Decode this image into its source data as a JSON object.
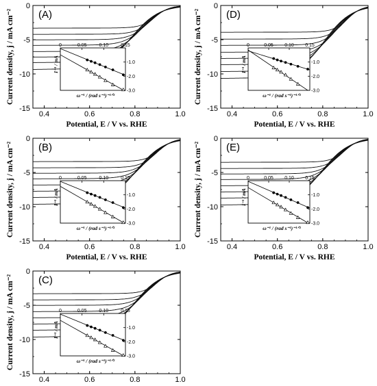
{
  "chart_data": [
    {
      "panel": "(A)",
      "type": "line",
      "xlabel": "Potential, E / V vs. RHE",
      "ylabel": "Current density, j / mA cm⁻²",
      "xlim": [
        0.35,
        1.0
      ],
      "ylim": [
        -15,
        0
      ],
      "xticks": [
        "0.4",
        "0.6",
        "0.8",
        "1.0"
      ],
      "yticks": [
        "0",
        "-5",
        "-10",
        "-15"
      ],
      "limiting_currents": [
        -3.3,
        -4.2,
        -5.0,
        -5.8,
        -6.7,
        -7.5,
        -8.3,
        -9.3
      ],
      "half_wave_potential": 0.89,
      "inset": {
        "ylabel": "I⁻¹ / mA",
        "xlabel": "ω⁻¹ / (rad s⁻¹)⁻¹ᐟ²",
        "xticks": [
          "0",
          "0.05",
          "0.10",
          "0.15"
        ],
        "yticks": [
          "-1.0",
          "-2.0",
          "-3.0"
        ],
        "xlim": [
          0,
          0.15
        ],
        "ylim": [
          -3.0,
          0
        ],
        "filled_points": [
          [
            0.062,
            -0.85
          ],
          [
            0.071,
            -0.95
          ],
          [
            0.08,
            -1.05
          ],
          [
            0.091,
            -1.18
          ],
          [
            0.104,
            -1.35
          ],
          [
            0.121,
            -1.55
          ],
          [
            0.145,
            -1.9
          ]
        ],
        "open_points": [
          [
            0.062,
            -1.55
          ],
          [
            0.071,
            -1.7
          ],
          [
            0.08,
            -1.85
          ],
          [
            0.091,
            -2.05
          ],
          [
            0.104,
            -2.3
          ],
          [
            0.121,
            -2.6
          ],
          [
            0.145,
            -2.95
          ]
        ]
      }
    },
    {
      "panel": "(B)",
      "type": "line",
      "xlabel": "Potential, E / V vs. RHE",
      "ylabel": "Current density, j / mA cm⁻²",
      "xlim": [
        0.35,
        1.0
      ],
      "ylim": [
        -15,
        0
      ],
      "xticks": [
        "0.4",
        "0.6",
        "0.8",
        "1.0"
      ],
      "yticks": [
        "0",
        "-5",
        "-10",
        "-15"
      ],
      "limiting_currents": [
        -3.4,
        -4.3,
        -5.1,
        -5.9,
        -6.8,
        -7.7,
        -8.6,
        -9.6
      ],
      "half_wave_potential": 0.91,
      "inset": {
        "ylabel": "I⁻¹ / mA",
        "xlabel": "ω⁻¹ / (rad s⁻¹)⁻¹ᐟ²",
        "xticks": [
          "0",
          "0.05",
          "0.10",
          "0.15"
        ],
        "yticks": [
          "-1.0",
          "-2.0",
          "-3.0"
        ],
        "xlim": [
          0,
          0.15
        ],
        "ylim": [
          -3.0,
          0
        ],
        "filled_points": [
          [
            0.062,
            -0.85
          ],
          [
            0.071,
            -0.95
          ],
          [
            0.08,
            -1.05
          ],
          [
            0.091,
            -1.18
          ],
          [
            0.104,
            -1.35
          ],
          [
            0.121,
            -1.55
          ],
          [
            0.145,
            -1.9
          ]
        ],
        "open_points": [
          [
            0.062,
            -1.5
          ],
          [
            0.071,
            -1.65
          ],
          [
            0.08,
            -1.8
          ],
          [
            0.091,
            -2.0
          ],
          [
            0.104,
            -2.25
          ],
          [
            0.121,
            -2.55
          ],
          [
            0.145,
            -2.95
          ]
        ]
      }
    },
    {
      "panel": "(C)",
      "type": "line",
      "xlabel": "Potential, E / V vs. RHE",
      "ylabel": "Current density, j / mA cm⁻²",
      "xlim": [
        0.35,
        1.0
      ],
      "ylim": [
        -15,
        0
      ],
      "xticks": [
        "0.4",
        "0.6",
        "0.8",
        "1.0"
      ],
      "yticks": [
        "0",
        "-5",
        "-10",
        "-15"
      ],
      "limiting_currents": [
        -3.3,
        -4.2,
        -5.0,
        -5.9,
        -6.8,
        -7.7,
        -8.6,
        -9.6
      ],
      "half_wave_potential": 0.9,
      "inset": {
        "ylabel": "I⁻¹ / mA",
        "xlabel": "ω⁻¹ / (rad s⁻¹)⁻¹ᐟ²",
        "xticks": [
          "0",
          "0.05",
          "0.10",
          "0.15"
        ],
        "yticks": [
          "-1.0",
          "-2.0",
          "-3.0"
        ],
        "xlim": [
          0,
          0.15
        ],
        "ylim": [
          -3.0,
          0
        ],
        "filled_points": [
          [
            0.062,
            -0.85
          ],
          [
            0.071,
            -0.95
          ],
          [
            0.08,
            -1.05
          ],
          [
            0.091,
            -1.18
          ],
          [
            0.104,
            -1.35
          ],
          [
            0.121,
            -1.55
          ],
          [
            0.145,
            -1.9
          ]
        ],
        "open_points": [
          [
            0.062,
            -1.55
          ],
          [
            0.071,
            -1.7
          ],
          [
            0.08,
            -1.85
          ],
          [
            0.091,
            -2.05
          ],
          [
            0.104,
            -2.3
          ],
          [
            0.121,
            -2.6
          ],
          [
            0.145,
            -2.95
          ]
        ]
      }
    },
    {
      "panel": "(D)",
      "type": "line",
      "xlabel": "Potential, E / V vs. RHE",
      "ylabel": "Current density, j / mA cm⁻²",
      "xlim": [
        0.35,
        1.0
      ],
      "ylim": [
        -15,
        0
      ],
      "xticks": [
        "0.4",
        "0.6",
        "0.8",
        "1.0"
      ],
      "yticks": [
        "0",
        "-5",
        "-10",
        "-15"
      ],
      "limiting_currents": [
        -3.9,
        -4.9,
        -5.8,
        -6.8,
        -7.7,
        -8.6,
        -9.6,
        -10.6
      ],
      "half_wave_potential": 0.91,
      "inset": {
        "ylabel": "I⁻¹ / mA",
        "xlabel": "ω⁻¹ / (rad s⁻¹)⁻¹ᐟ²",
        "xticks": [
          "0",
          "0.05",
          "0.10",
          "0.15"
        ],
        "yticks": [
          "-1.0",
          "-2.0",
          "-3.0"
        ],
        "xlim": [
          0,
          0.15
        ],
        "ylim": [
          -3.0,
          0
        ],
        "filled_points": [
          [
            0.062,
            -0.75
          ],
          [
            0.071,
            -0.85
          ],
          [
            0.08,
            -0.93
          ],
          [
            0.091,
            -1.03
          ],
          [
            0.104,
            -1.15
          ],
          [
            0.121,
            -1.3
          ],
          [
            0.145,
            -1.5
          ]
        ],
        "open_points": [
          [
            0.062,
            -1.4
          ],
          [
            0.071,
            -1.55
          ],
          [
            0.08,
            -1.7
          ],
          [
            0.091,
            -1.9
          ],
          [
            0.104,
            -2.2
          ],
          [
            0.121,
            -2.55
          ]
        ]
      }
    },
    {
      "panel": "(E)",
      "type": "line",
      "xlabel": "Potential, E / V vs. RHE",
      "ylabel": "Current density, j / mA cm⁻²",
      "xlim": [
        0.35,
        1.0
      ],
      "ylim": [
        -15,
        0
      ],
      "xticks": [
        "0.4",
        "0.6",
        "0.8",
        "1.0"
      ],
      "yticks": [
        "0",
        "-5",
        "-10",
        "-15"
      ],
      "limiting_currents": [
        -3.5,
        -4.4,
        -5.2,
        -6.0,
        -6.9,
        -7.8,
        -8.7,
        -9.7
      ],
      "half_wave_potential": 0.9,
      "inset": {
        "ylabel": "I⁻¹ / mA",
        "xlabel": "ω⁻¹ / (rad s⁻¹)⁻¹ᐟ²",
        "xticks": [
          "0",
          "0.05",
          "0.10",
          "0.15"
        ],
        "yticks": [
          "-1.0",
          "-2.0",
          "-3.0"
        ],
        "xlim": [
          0,
          0.15
        ],
        "ylim": [
          -3.0,
          0
        ],
        "filled_points": [
          [
            0.062,
            -0.85
          ],
          [
            0.071,
            -0.95
          ],
          [
            0.08,
            -1.05
          ],
          [
            0.091,
            -1.18
          ],
          [
            0.104,
            -1.35
          ],
          [
            0.121,
            -1.55
          ],
          [
            0.145,
            -1.9
          ]
        ],
        "open_points": [
          [
            0.062,
            -1.55
          ],
          [
            0.071,
            -1.7
          ],
          [
            0.08,
            -1.85
          ],
          [
            0.091,
            -2.05
          ],
          [
            0.104,
            -2.3
          ],
          [
            0.121,
            -2.6
          ],
          [
            0.145,
            -2.95
          ]
        ]
      }
    }
  ]
}
